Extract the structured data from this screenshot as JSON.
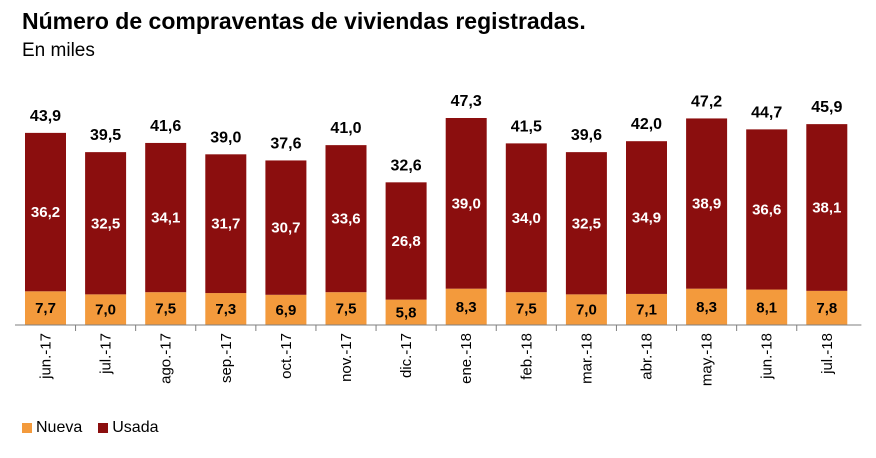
{
  "chart_data": {
    "type": "bar",
    "stacked": true,
    "title": "Número de compraventas de viviendas registradas.",
    "subtitle": "En miles",
    "categories": [
      "jun.-17",
      "jul.-17",
      "ago.-17",
      "sep.-17",
      "oct.-17",
      "nov.-17",
      "dic.-17",
      "ene.-18",
      "feb.-18",
      "mar.-18",
      "abr.-18",
      "may.-18",
      "jun.-18",
      "jul.-18"
    ],
    "series": [
      {
        "name": "Nueva",
        "color": "#F39A3C",
        "values": [
          7.7,
          7.0,
          7.5,
          7.3,
          6.9,
          7.5,
          5.8,
          8.3,
          7.5,
          7.0,
          7.1,
          8.3,
          8.1,
          7.8
        ],
        "labels": [
          "7,7",
          "7,0",
          "7,5",
          "7,3",
          "6,9",
          "7,5",
          "5,8",
          "8,3",
          "7,5",
          "7,0",
          "7,1",
          "8,3",
          "8,1",
          "7,8"
        ]
      },
      {
        "name": "Usada",
        "color": "#8B0E0E",
        "values": [
          36.2,
          32.5,
          34.1,
          31.7,
          30.7,
          33.6,
          26.8,
          39.0,
          34.0,
          32.5,
          34.9,
          38.9,
          36.6,
          38.1
        ],
        "labels": [
          "36,2",
          "32,5",
          "34,1",
          "31,7",
          "30,7",
          "33,6",
          "26,8",
          "39,0",
          "34,0",
          "32,5",
          "34,9",
          "38,9",
          "36,6",
          "38,1"
        ]
      }
    ],
    "totals": [
      43.9,
      39.5,
      41.6,
      39.0,
      37.6,
      41.0,
      32.6,
      47.3,
      41.5,
      39.6,
      42.0,
      47.2,
      44.7,
      45.9
    ],
    "total_labels": [
      "43,9",
      "39,5",
      "41,6",
      "39,0",
      "37,6",
      "41,0",
      "32,6",
      "47,3",
      "41,5",
      "39,6",
      "42,0",
      "47,2",
      "44,7",
      "45,9"
    ],
    "ylim": [
      0,
      47.3
    ],
    "grid": false,
    "legend": "bottom-left"
  }
}
